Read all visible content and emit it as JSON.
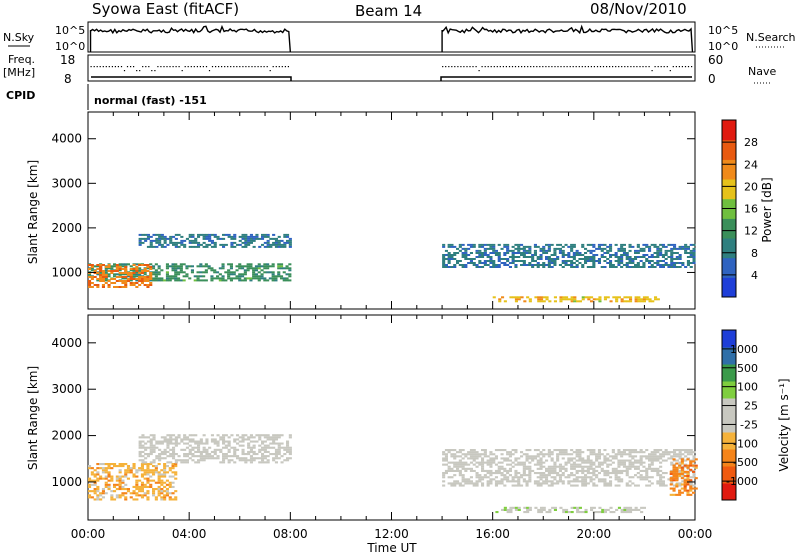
{
  "header": {
    "station": "Syowa East (fitACF)",
    "beam": "Beam 14",
    "date": "08/Nov/2010"
  },
  "panels": {
    "nsky": {
      "label": "N.Sky",
      "right_label": "N.Search",
      "left_ticks": [
        "10^5",
        "10^0"
      ],
      "right_ticks": [
        "10^5",
        "10^0"
      ]
    },
    "freq": {
      "label_line1": "Freq.",
      "label_line2": "[MHz]",
      "right_label": "Nave",
      "left_ticks": [
        "18",
        "8"
      ],
      "right_ticks": [
        "60",
        "0"
      ]
    },
    "cpid": {
      "label": "CPID",
      "value": "normal (fast) -151"
    }
  },
  "colors": {
    "power_scale": [
      "#1f3fd8",
      "#2f63c0",
      "#2f7f7f",
      "#3a8f5a",
      "#6fbf3f",
      "#e6c21a",
      "#f08a1a",
      "#e85a10",
      "#e01a10"
    ],
    "velocity_scale": [
      "#e01a10",
      "#f05a10",
      "#f5841a",
      "#f5b23a",
      "#c8c8c0",
      "#c8c8c0",
      "#7fce3f",
      "#3a9a4a",
      "#2f6fa8",
      "#1f3fd8"
    ]
  },
  "chart_data": [
    {
      "type": "heatmap",
      "panel": "power",
      "ylabel": "Slant Range [km]",
      "ylim": [
        180,
        4600
      ],
      "yticks": [
        1000,
        2000,
        3000,
        4000
      ],
      "xlim": [
        "00:00",
        "24:00"
      ],
      "colorbar": {
        "label": "Power [dB]",
        "ticks": [
          "4",
          "8",
          "12",
          "16",
          "20",
          "24",
          "28"
        ],
        "range": [
          0,
          32
        ]
      },
      "data_gaps": [
        [
          "08:00",
          "14:00"
        ]
      ],
      "echo_regions": [
        {
          "t0": "00:00",
          "t1": "08:00",
          "range_km": [
            800,
            1200
          ],
          "level_db": 12
        },
        {
          "t0": "00:00",
          "t1": "02:30",
          "range_km": [
            650,
            1150
          ],
          "level_db": 24
        },
        {
          "t0": "02:00",
          "t1": "08:00",
          "range_km": [
            1550,
            1850
          ],
          "level_db": 8
        },
        {
          "t0": "14:00",
          "t1": "24:00",
          "range_km": [
            1100,
            1600
          ],
          "level_db": 8
        },
        {
          "t0": "16:00",
          "t1": "22:30",
          "range_km": [
            330,
            450
          ],
          "level_db": 20
        }
      ]
    },
    {
      "type": "heatmap",
      "panel": "velocity",
      "ylabel": "Slant Range [km]",
      "xlabel": "Time UT",
      "ylim": [
        180,
        4600
      ],
      "yticks": [
        1000,
        2000,
        3000,
        4000
      ],
      "xlim": [
        "00:00",
        "24:00"
      ],
      "xticks": [
        "00:00",
        "04:00",
        "08:00",
        "12:00",
        "16:00",
        "20:00",
        "00:00"
      ],
      "colorbar": {
        "label": "Velocity [m s⁻¹]",
        "ticks": [
          "-1000",
          "-500",
          "-100",
          "-25",
          "25",
          "100",
          "500",
          "1000"
        ],
        "range": [
          -1000,
          1000
        ]
      },
      "data_gaps": [
        [
          "08:00",
          "14:00"
        ]
      ],
      "echo_regions": [
        {
          "t0": "00:00",
          "t1": "03:30",
          "range_km": [
            600,
            1400
          ],
          "velocity": -300
        },
        {
          "t0": "02:00",
          "t1": "08:00",
          "range_km": [
            1400,
            2000
          ],
          "velocity": 0
        },
        {
          "t0": "14:00",
          "t1": "24:00",
          "range_km": [
            900,
            1700
          ],
          "velocity": 0
        },
        {
          "t0": "16:00",
          "t1": "22:00",
          "range_km": [
            330,
            460
          ],
          "velocity": 100
        },
        {
          "t0": "23:00",
          "t1": "24:00",
          "range_km": [
            700,
            1500
          ],
          "velocity": -500
        }
      ]
    }
  ]
}
